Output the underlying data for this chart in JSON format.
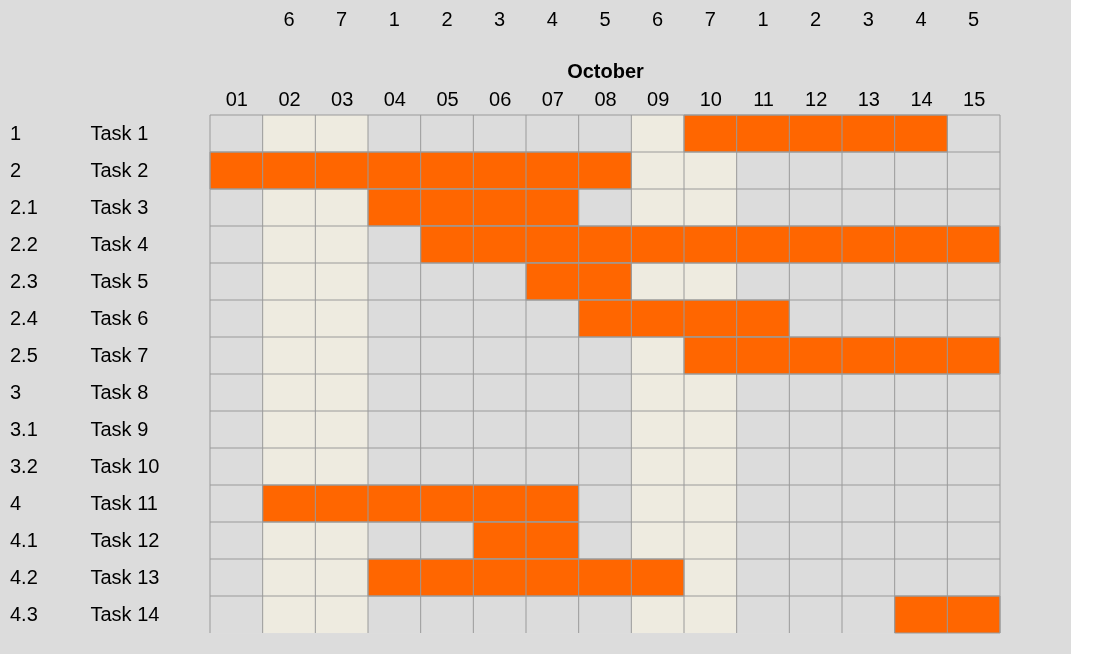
{
  "chart_data": {
    "type": "bar",
    "orientation": "horizontal",
    "xlabel": "October",
    "categories": [
      "Task 1",
      "Task 2",
      "Task 3",
      "Task 4",
      "Task 5",
      "Task 6",
      "Task 7",
      "Task 8",
      "Task 9",
      "Task 10",
      "Task 11",
      "Task 12",
      "Task 13",
      "Task 14"
    ],
    "base": [
      9.5,
      0.5,
      3.5,
      4.5,
      6.5,
      7.5,
      9.5,
      null,
      null,
      null,
      1.5,
      5.5,
      3.5,
      13.5
    ],
    "values": [
      5,
      8,
      4,
      11,
      2,
      4,
      6,
      null,
      null,
      null,
      6,
      2,
      6,
      2
    ],
    "color": "#ff6600",
    "xlim": [
      0.5,
      15.5
    ],
    "xticks": [
      {
        "value": 1,
        "label": "01"
      },
      {
        "value": 2,
        "label": "02"
      },
      {
        "value": 3,
        "label": "03"
      },
      {
        "value": 4,
        "label": "04"
      },
      {
        "value": 5,
        "label": "05"
      },
      {
        "value": 6,
        "label": "06"
      },
      {
        "value": 7,
        "label": "07"
      },
      {
        "value": 8,
        "label": "08"
      },
      {
        "value": 9,
        "label": "09"
      },
      10,
      11,
      12,
      13,
      14,
      15
    ],
    "bands": [
      {
        "axis": "x",
        "from": 1.5,
        "to": 3.5,
        "color": "#eeebe0"
      },
      {
        "axis": "x",
        "from": 8.5,
        "to": 10.5,
        "color": "#eeebe0"
      }
    ],
    "annotations": [
      "1",
      "2",
      "2.1",
      "2.2",
      "2.3",
      "2.4",
      "2.5",
      "3",
      "3.1",
      "3.2",
      "4",
      "4.1",
      "4.2",
      "4.3",
      "6",
      "7",
      "1",
      "2",
      "3",
      "4",
      "5",
      "6",
      "7",
      "1",
      "2",
      "3",
      "4",
      "5"
    ],
    "grid": true
  }
}
